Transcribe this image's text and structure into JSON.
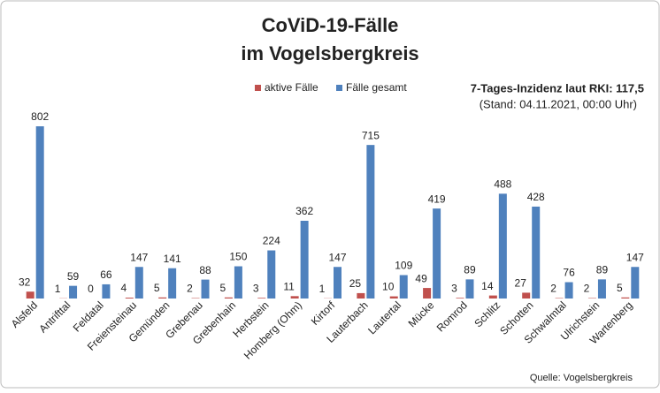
{
  "chart_data": {
    "type": "bar",
    "title": "CoViD-19-Fälle",
    "subtitle": "im Vogelsbergkreis",
    "annotations": [
      "7-Tages-Inzidenz laut RKI: 117,5",
      "(Stand: 04.11.2021, 00:00 Uhr)",
      "Quelle: Vogelsbergkreis"
    ],
    "categories": [
      "Alsfeld",
      "Antrifttal",
      "Feldatal",
      "Freiensteinau",
      "Gemünden",
      "Grebenau",
      "Grebenhain",
      "Herbstein",
      "Homberg (Ohm)",
      "Kirtorf",
      "Lauterbach",
      "Lautertal",
      "Mücke",
      "Romrod",
      "Schlitz",
      "Schotten",
      "Schwalmtal",
      "Ulrichstein",
      "Wartenberg"
    ],
    "series": [
      {
        "name": "aktive Fälle",
        "color": "#c0504d",
        "values": [
          32,
          1,
          0,
          4,
          5,
          2,
          5,
          3,
          11,
          1,
          25,
          10,
          49,
          3,
          14,
          27,
          2,
          2,
          5
        ]
      },
      {
        "name": "Fälle gesamt",
        "color": "#4f81bd",
        "values": [
          802,
          59,
          66,
          147,
          141,
          88,
          150,
          224,
          362,
          147,
          715,
          109,
          419,
          89,
          488,
          428,
          76,
          89,
          147
        ]
      }
    ],
    "legend": "top"
  }
}
